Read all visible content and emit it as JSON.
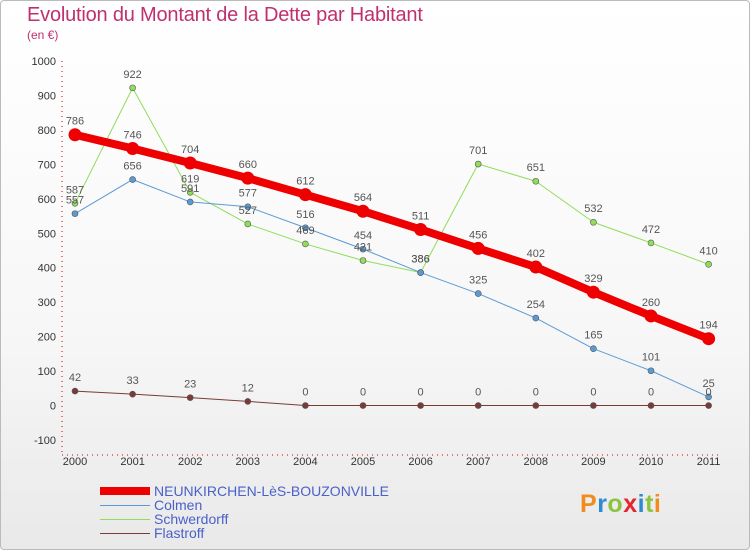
{
  "header": {
    "title": "Evolution du Montant de la Dette par Habitant",
    "subtitle": "(en €)"
  },
  "brand": {
    "text": "Proxiti",
    "colors": [
      "#f28b1f",
      "#2e8bd1",
      "#8bc43f",
      "#e3262f",
      "#2e8bd1",
      "#8bc43f",
      "#f28b1f"
    ]
  },
  "chart_data": {
    "type": "line",
    "title": "Evolution du Montant de la Dette par Habitant",
    "subtitle": "(en €)",
    "xlabel": "",
    "ylabel": "",
    "x": [
      "2000",
      "2001",
      "2002",
      "2003",
      "2004",
      "2005",
      "2006",
      "2007",
      "2008",
      "2009",
      "2010",
      "2011"
    ],
    "ylim": [
      -100,
      1000
    ],
    "yticks": [
      -100,
      0,
      100,
      200,
      300,
      400,
      500,
      600,
      700,
      800,
      900,
      1000
    ],
    "grid": false,
    "legend_position": "bottom-left",
    "series": [
      {
        "name": "NEUNKIRCHEN-LèS-BOUZONVILLE",
        "color": "#ee0000",
        "values": [
          786,
          746,
          704,
          660,
          612,
          564,
          511,
          456,
          402,
          329,
          260,
          194
        ]
      },
      {
        "name": "Colmen",
        "color": "#5b9bd5",
        "values": [
          557,
          656,
          591,
          577,
          516,
          454,
          386,
          325,
          254,
          165,
          101,
          25
        ]
      },
      {
        "name": "Schwerdorff",
        "color": "#8fdd5a",
        "values": [
          587,
          922,
          619,
          527,
          469,
          421,
          386,
          701,
          651,
          532,
          472,
          410
        ]
      },
      {
        "name": "Flastroff",
        "color": "#7b3a3a",
        "values": [
          42,
          33,
          23,
          12,
          0,
          0,
          0,
          0,
          0,
          0,
          0,
          0
        ]
      }
    ]
  }
}
